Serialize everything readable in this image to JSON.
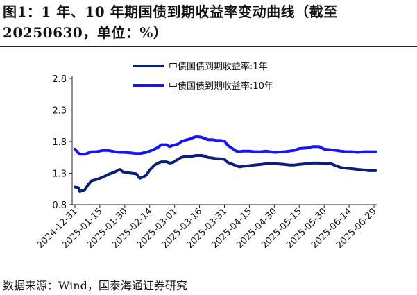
{
  "title": "图1：1 年、10 年期国债到期收益率变动曲线（截至 20250630，单位：%）",
  "source": "数据来源：Wind，国泰海通证券研究",
  "chart_data": {
    "type": "line",
    "title": "",
    "xlabel": "",
    "ylabel": "",
    "ylim": [
      0.8,
      2.8
    ],
    "yticks": [
      "0.8",
      "1.3",
      "1.8",
      "2.3",
      "2.8"
    ],
    "xticks": [
      "2024-12-31",
      "2025-01-15",
      "2025-01-30",
      "2025-02-14",
      "2025-03-01",
      "2025-03-16",
      "2025-03-31",
      "2025-04-15",
      "2025-04-30",
      "2025-05-15",
      "2025-05-30",
      "2025-06-14",
      "2025-06-29"
    ],
    "legend_position": "top-center",
    "grid": false,
    "series": [
      {
        "name": "中债国债到期收益率:1年",
        "color": "#0a1e7a",
        "points": [
          [
            "2024-12-31",
            1.08
          ],
          [
            "2025-01-02",
            1.07
          ],
          [
            "2025-01-03",
            1.01
          ],
          [
            "2025-01-06",
            1.04
          ],
          [
            "2025-01-08",
            1.12
          ],
          [
            "2025-01-10",
            1.18
          ],
          [
            "2025-01-13",
            1.2
          ],
          [
            "2025-01-15",
            1.22
          ],
          [
            "2025-01-17",
            1.24
          ],
          [
            "2025-01-20",
            1.28
          ],
          [
            "2025-01-22",
            1.3
          ],
          [
            "2025-01-24",
            1.32
          ],
          [
            "2025-01-27",
            1.36
          ],
          [
            "2025-01-29",
            1.32
          ],
          [
            "2025-02-03",
            1.3
          ],
          [
            "2025-02-06",
            1.29
          ],
          [
            "2025-02-08",
            1.22
          ],
          [
            "2025-02-10",
            1.24
          ],
          [
            "2025-02-12",
            1.27
          ],
          [
            "2025-02-14",
            1.35
          ],
          [
            "2025-02-17",
            1.43
          ],
          [
            "2025-02-19",
            1.46
          ],
          [
            "2025-02-21",
            1.48
          ],
          [
            "2025-02-24",
            1.48
          ],
          [
            "2025-02-26",
            1.46
          ],
          [
            "2025-02-28",
            1.47
          ],
          [
            "2025-03-03",
            1.52
          ],
          [
            "2025-03-05",
            1.55
          ],
          [
            "2025-03-07",
            1.56
          ],
          [
            "2025-03-10",
            1.56
          ],
          [
            "2025-03-12",
            1.57
          ],
          [
            "2025-03-14",
            1.58
          ],
          [
            "2025-03-17",
            1.58
          ],
          [
            "2025-03-19",
            1.57
          ],
          [
            "2025-03-21",
            1.55
          ],
          [
            "2025-03-24",
            1.54
          ],
          [
            "2025-03-26",
            1.53
          ],
          [
            "2025-03-28",
            1.53
          ],
          [
            "2025-03-31",
            1.52
          ],
          [
            "2025-04-02",
            1.47
          ],
          [
            "2025-04-07",
            1.42
          ],
          [
            "2025-04-09",
            1.4
          ],
          [
            "2025-04-11",
            1.41
          ],
          [
            "2025-04-15",
            1.42
          ],
          [
            "2025-04-18",
            1.43
          ],
          [
            "2025-04-22",
            1.44
          ],
          [
            "2025-04-25",
            1.45
          ],
          [
            "2025-04-30",
            1.45
          ],
          [
            "2025-05-06",
            1.44
          ],
          [
            "2025-05-09",
            1.43
          ],
          [
            "2025-05-12",
            1.43
          ],
          [
            "2025-05-15",
            1.44
          ],
          [
            "2025-05-20",
            1.45
          ],
          [
            "2025-05-23",
            1.46
          ],
          [
            "2025-05-27",
            1.46
          ],
          [
            "2025-05-30",
            1.45
          ],
          [
            "2025-06-03",
            1.45
          ],
          [
            "2025-06-06",
            1.42
          ],
          [
            "2025-06-09",
            1.39
          ],
          [
            "2025-06-12",
            1.38
          ],
          [
            "2025-06-16",
            1.37
          ],
          [
            "2025-06-19",
            1.36
          ],
          [
            "2025-06-23",
            1.35
          ],
          [
            "2025-06-26",
            1.34
          ],
          [
            "2025-06-30",
            1.34
          ]
        ]
      },
      {
        "name": "中债国债到期收益率:10年",
        "color": "#1414ff",
        "points": [
          [
            "2024-12-31",
            1.68
          ],
          [
            "2025-01-02",
            1.62
          ],
          [
            "2025-01-03",
            1.6
          ],
          [
            "2025-01-06",
            1.6
          ],
          [
            "2025-01-08",
            1.62
          ],
          [
            "2025-01-10",
            1.64
          ],
          [
            "2025-01-13",
            1.64
          ],
          [
            "2025-01-15",
            1.65
          ],
          [
            "2025-01-17",
            1.66
          ],
          [
            "2025-01-20",
            1.66
          ],
          [
            "2025-01-22",
            1.65
          ],
          [
            "2025-01-24",
            1.64
          ],
          [
            "2025-01-27",
            1.63
          ],
          [
            "2025-01-29",
            1.63
          ],
          [
            "2025-02-03",
            1.62
          ],
          [
            "2025-02-06",
            1.61
          ],
          [
            "2025-02-08",
            1.61
          ],
          [
            "2025-02-10",
            1.62
          ],
          [
            "2025-02-12",
            1.63
          ],
          [
            "2025-02-14",
            1.65
          ],
          [
            "2025-02-17",
            1.68
          ],
          [
            "2025-02-19",
            1.71
          ],
          [
            "2025-02-21",
            1.75
          ],
          [
            "2025-02-24",
            1.75
          ],
          [
            "2025-02-26",
            1.72
          ],
          [
            "2025-02-28",
            1.74
          ],
          [
            "2025-03-03",
            1.76
          ],
          [
            "2025-03-05",
            1.8
          ],
          [
            "2025-03-07",
            1.82
          ],
          [
            "2025-03-10",
            1.84
          ],
          [
            "2025-03-12",
            1.86
          ],
          [
            "2025-03-14",
            1.88
          ],
          [
            "2025-03-17",
            1.87
          ],
          [
            "2025-03-19",
            1.85
          ],
          [
            "2025-03-21",
            1.83
          ],
          [
            "2025-03-24",
            1.83
          ],
          [
            "2025-03-26",
            1.82
          ],
          [
            "2025-03-28",
            1.82
          ],
          [
            "2025-03-31",
            1.81
          ],
          [
            "2025-04-02",
            1.74
          ],
          [
            "2025-04-07",
            1.65
          ],
          [
            "2025-04-09",
            1.64
          ],
          [
            "2025-04-11",
            1.65
          ],
          [
            "2025-04-15",
            1.65
          ],
          [
            "2025-04-18",
            1.64
          ],
          [
            "2025-04-22",
            1.64
          ],
          [
            "2025-04-25",
            1.65
          ],
          [
            "2025-04-30",
            1.63
          ],
          [
            "2025-05-06",
            1.64
          ],
          [
            "2025-05-09",
            1.65
          ],
          [
            "2025-05-12",
            1.66
          ],
          [
            "2025-05-15",
            1.69
          ],
          [
            "2025-05-20",
            1.7
          ],
          [
            "2025-05-23",
            1.72
          ],
          [
            "2025-05-27",
            1.72
          ],
          [
            "2025-05-30",
            1.68
          ],
          [
            "2025-06-03",
            1.67
          ],
          [
            "2025-06-06",
            1.66
          ],
          [
            "2025-06-09",
            1.65
          ],
          [
            "2025-06-12",
            1.64
          ],
          [
            "2025-06-16",
            1.64
          ],
          [
            "2025-06-19",
            1.63
          ],
          [
            "2025-06-23",
            1.64
          ],
          [
            "2025-06-26",
            1.64
          ],
          [
            "2025-06-30",
            1.64
          ]
        ]
      }
    ]
  }
}
